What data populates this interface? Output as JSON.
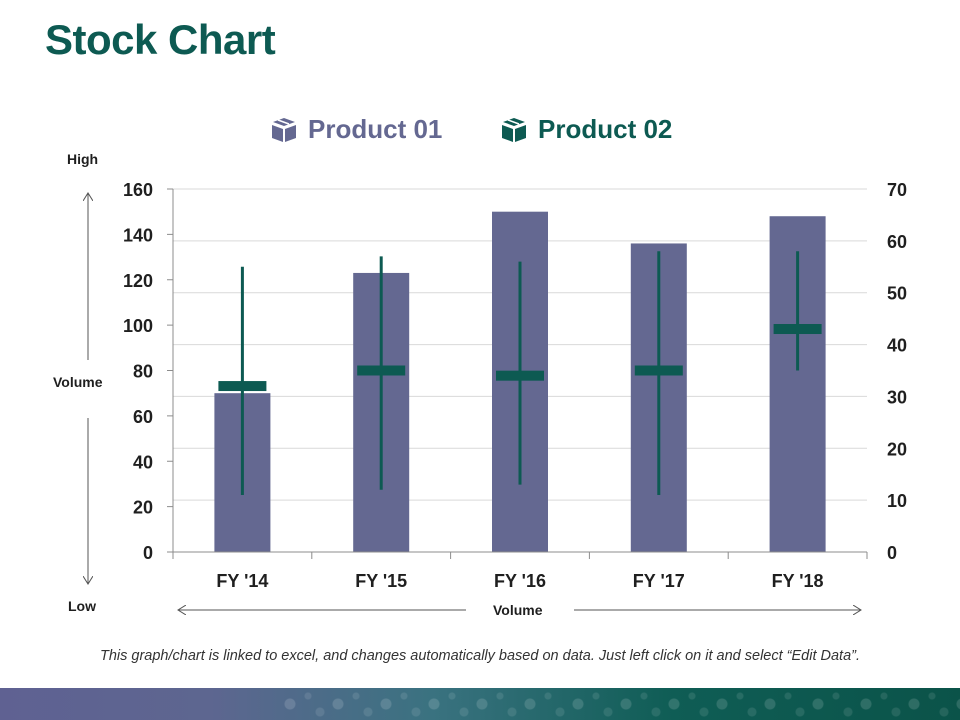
{
  "title": "Stock Chart",
  "legend": [
    {
      "label": "Product 01",
      "color": "#646891",
      "icon": "box-icon"
    },
    {
      "label": "Product 02",
      "color": "#0d5a52",
      "icon": "box-icon"
    }
  ],
  "side_labels": {
    "high": "High",
    "volume": "Volume",
    "low": "Low",
    "x_axis": "Volume"
  },
  "footnote": "This graph/chart is linked to excel, and changes automatically based on data. Just left click on it and select “Edit Data”.",
  "colors": {
    "bar": "#646891",
    "stock": "#0d5a52",
    "title": "#0d5a52",
    "grid": "#d9d9d9"
  },
  "chart_data": {
    "type": "bar",
    "categories": [
      "FY '14",
      "FY '15",
      "FY '16",
      "FY '17",
      "FY '18"
    ],
    "series": [
      {
        "name": "Product 01",
        "axis": "left",
        "values": [
          70,
          123,
          150,
          136,
          148
        ]
      },
      {
        "name": "Product 02",
        "axis": "right",
        "kind": "high-low-close",
        "high": [
          55,
          57,
          56,
          58,
          58
        ],
        "low": [
          11,
          12,
          13,
          11,
          35
        ],
        "close": [
          32,
          35,
          34,
          35,
          43
        ]
      }
    ],
    "y_left": {
      "min": 0,
      "max": 160,
      "ticks": [
        0,
        20,
        40,
        60,
        80,
        100,
        120,
        140,
        160
      ]
    },
    "y_right": {
      "min": 0,
      "max": 70,
      "ticks": [
        0,
        10,
        20,
        30,
        40,
        50,
        60,
        70
      ]
    },
    "grid": true,
    "legend_position": "top"
  }
}
